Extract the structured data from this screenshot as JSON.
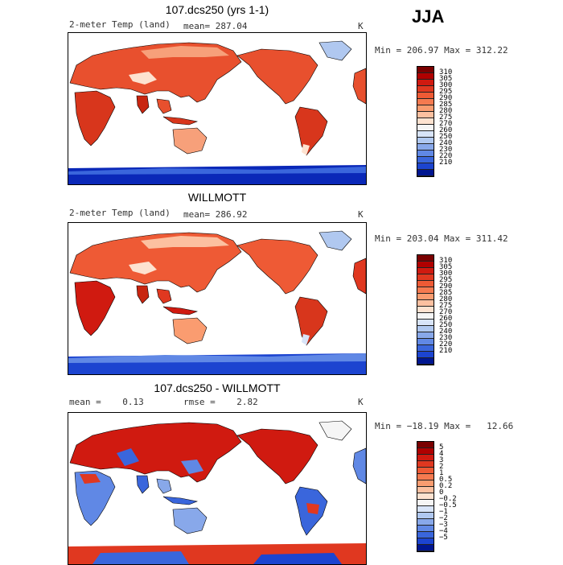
{
  "season": "JJA",
  "panels": [
    {
      "title": "107.dcs250 (yrs 1-1)",
      "left_label": "2-meter Temp (land)",
      "mean_label": "mean= 287.04",
      "units": "K",
      "minmax": "Min = 206.97 Max = 312.22",
      "cbar_colors": [
        "#7a0000",
        "#b00000",
        "#d01a10",
        "#e03820",
        "#ee5a35",
        "#f57a50",
        "#fa9c70",
        "#fcc0a0",
        "#fde2d0",
        "#f5f5f5",
        "#d8e4f8",
        "#b0c8f0",
        "#88a8ea",
        "#6088e5",
        "#3a66dc",
        "#1c44d0",
        "#0a28b8",
        "#001690",
        "#000a60"
      ],
      "cbar_labels": [
        "310",
        "305",
        "300",
        "295",
        "290",
        "285",
        "280",
        "275",
        "270",
        "260",
        "250",
        "240",
        "230",
        "220",
        "210"
      ]
    },
    {
      "title": "WILLMOTT",
      "left_label": "2-meter Temp (land)",
      "mean_label": "mean= 286.92",
      "units": "K",
      "minmax": "Min = 203.04 Max = 311.42",
      "cbar_colors": [
        "#7a0000",
        "#b00000",
        "#d01a10",
        "#e03820",
        "#ee5a35",
        "#f57a50",
        "#fa9c70",
        "#fcc0a0",
        "#fde2d0",
        "#f5f5f5",
        "#d8e4f8",
        "#b0c8f0",
        "#88a8ea",
        "#6088e5",
        "#3a66dc",
        "#1c44d0",
        "#0a28b8",
        "#001690",
        "#000a60"
      ],
      "cbar_labels": [
        "310",
        "305",
        "300",
        "295",
        "290",
        "285",
        "280",
        "275",
        "270",
        "260",
        "250",
        "240",
        "230",
        "220",
        "210"
      ]
    },
    {
      "title": "107.dcs250 - WILLMOTT",
      "left_label": "mean =    0.13",
      "mean_label": "rmse =    2.82",
      "units": "K",
      "minmax": "Min = −18.19 Max =   12.66",
      "cbar_colors": [
        "#7a0000",
        "#b00000",
        "#d01a10",
        "#e03820",
        "#ee5a35",
        "#f57a50",
        "#fa9c70",
        "#fcc0a0",
        "#fde2d0",
        "#f5f5f5",
        "#d8e4f8",
        "#b0c8f0",
        "#88a8ea",
        "#6088e5",
        "#3a66dc",
        "#1c44d0",
        "#0a28b8",
        "#001690",
        "#000a60"
      ],
      "cbar_labels": [
        "5",
        "4",
        "3",
        "2",
        "1",
        "0.5",
        "0.2",
        "0",
        "−0.2",
        "−0.5",
        "−1",
        "−2",
        "−3",
        "−4",
        "−5"
      ]
    }
  ]
}
